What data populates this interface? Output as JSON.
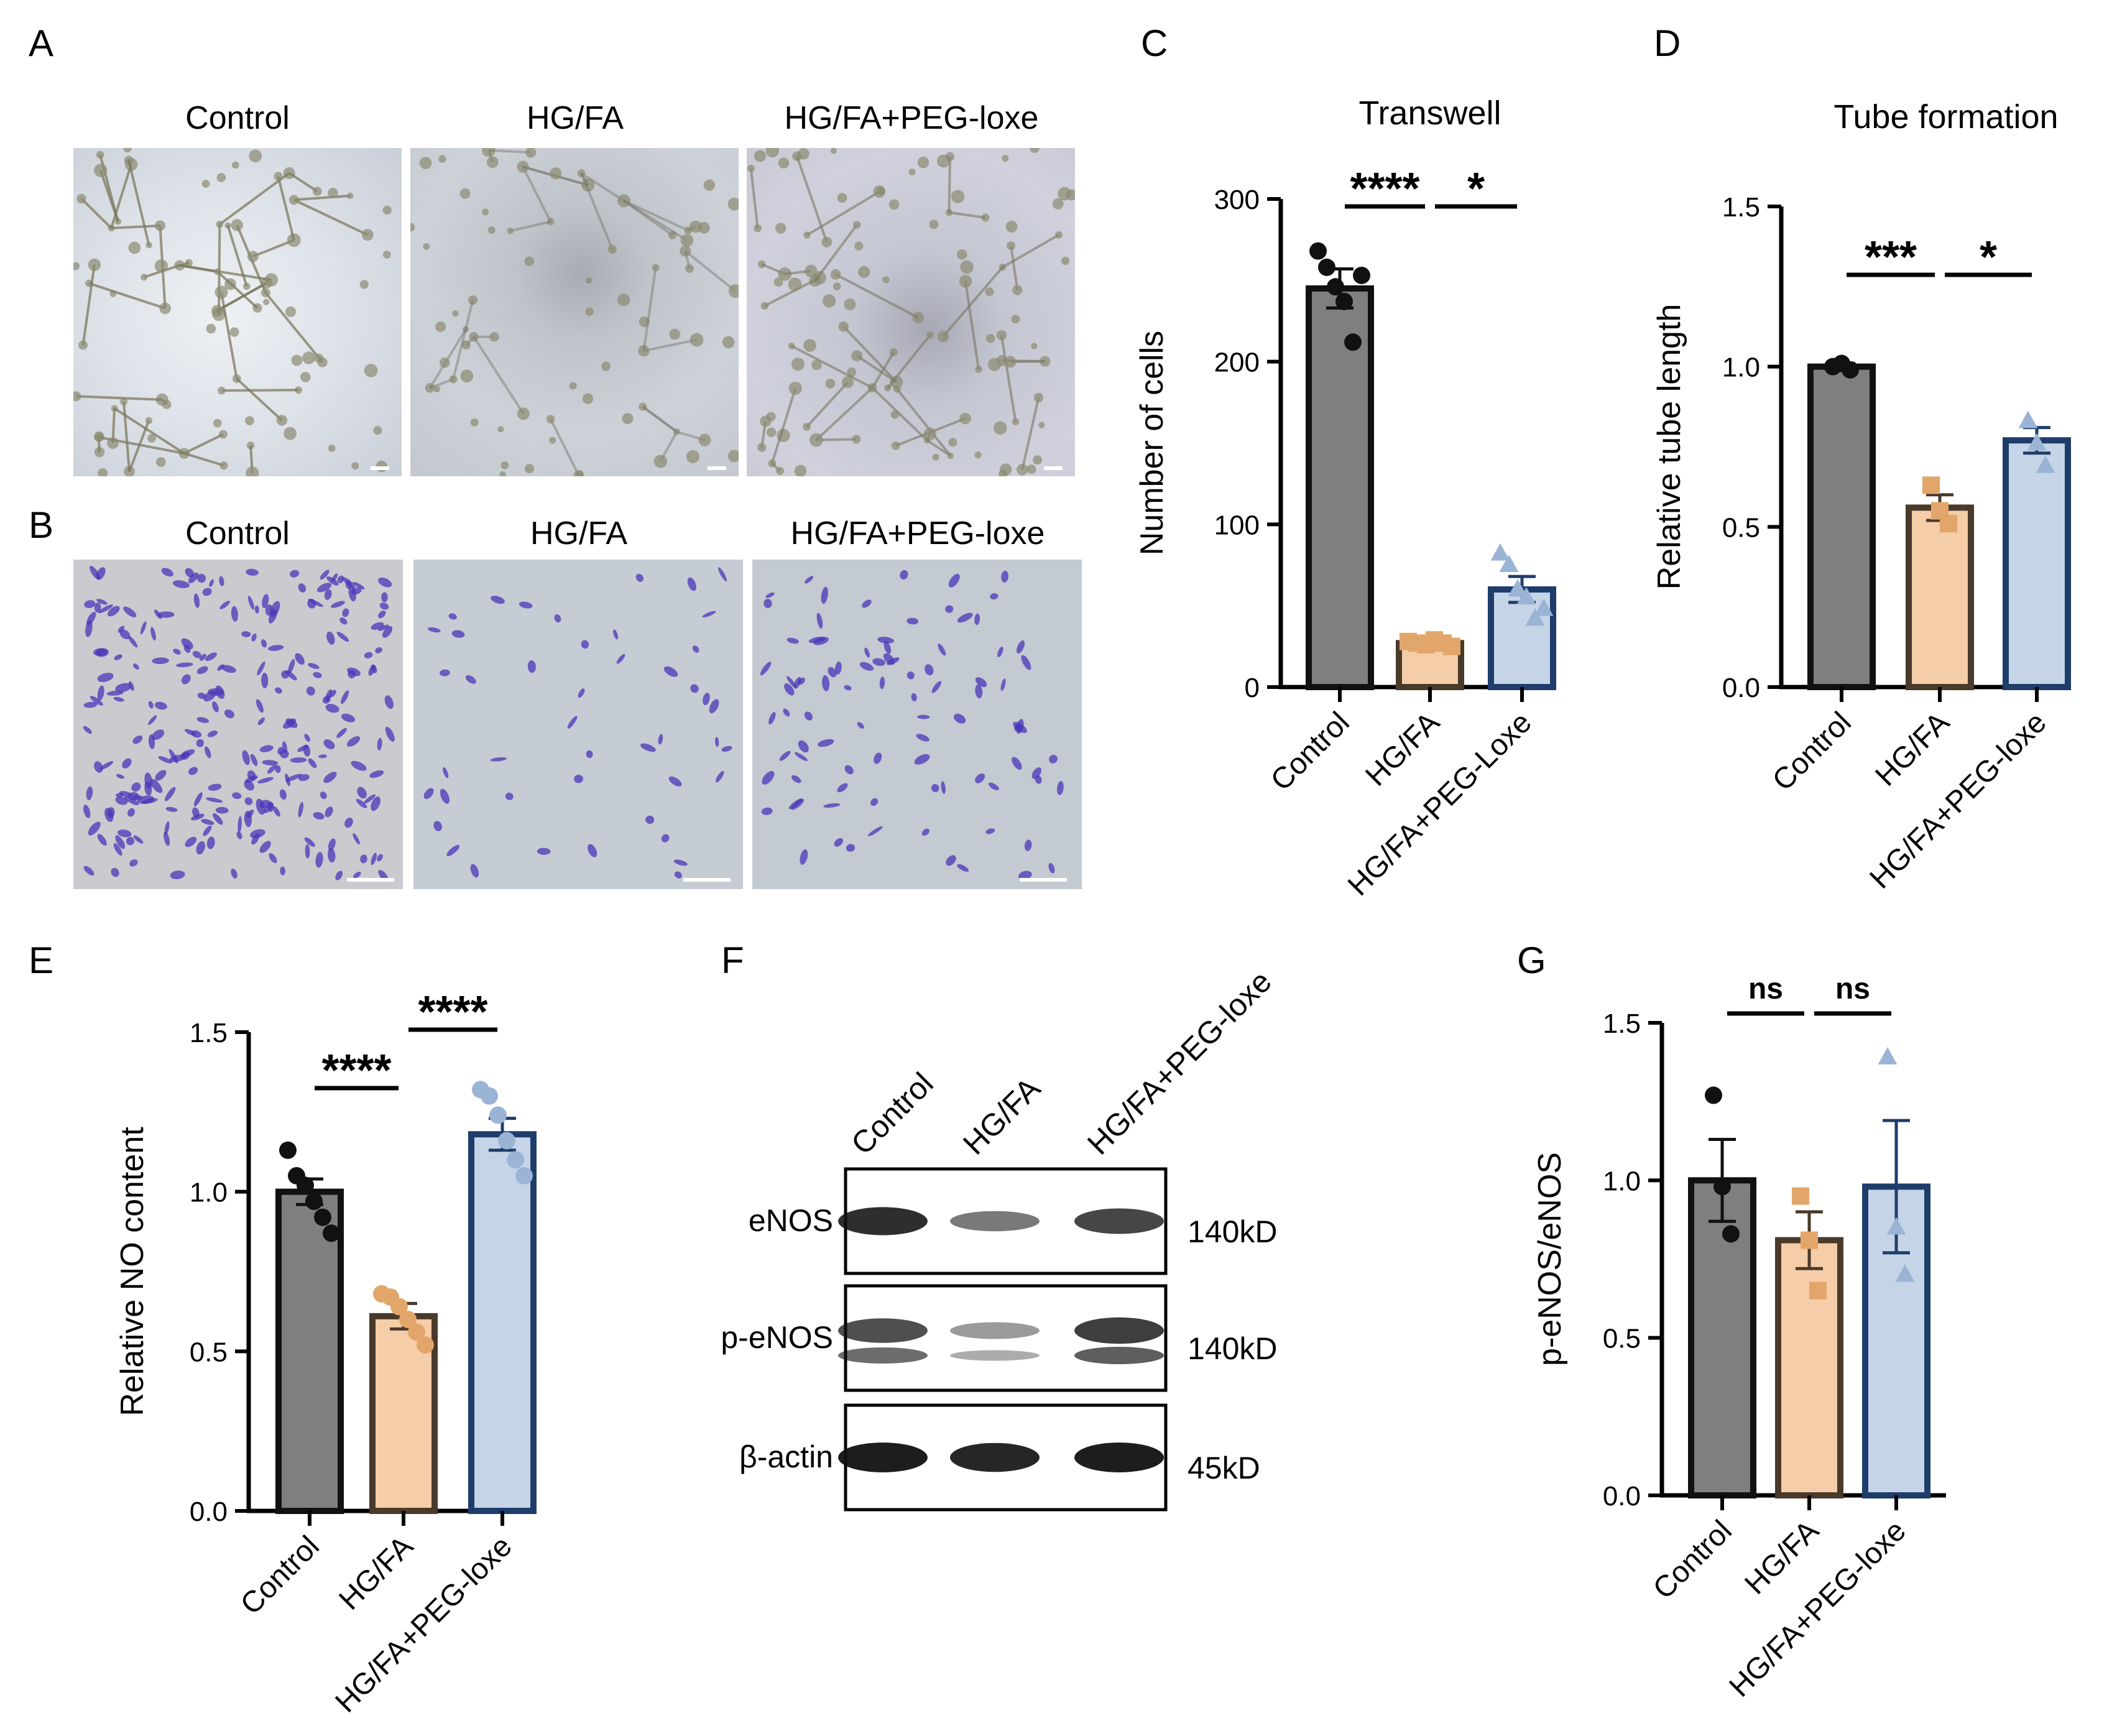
{
  "panels": {
    "A": {
      "letter": "A",
      "titles": [
        "Control",
        "HG/FA",
        "HG/FA+PEG-loxe"
      ]
    },
    "B": {
      "letter": "B",
      "titles": [
        "Control",
        "HG/FA",
        "HG/FA+PEG-loxe"
      ]
    },
    "C": {
      "letter": "C"
    },
    "D": {
      "letter": "D"
    },
    "E": {
      "letter": "E"
    },
    "F": {
      "letter": "F"
    },
    "G": {
      "letter": "G"
    }
  },
  "colors": {
    "control": "#7f7f7f",
    "hgfa": "#f5cda8",
    "peg": "#c5d5e7",
    "control_edge": "#111111",
    "hgfa_edge": "#4a3a2a",
    "peg_edge": "#1f3d6b",
    "hgfa_point": "#e3a66a",
    "peg_point": "#9bb4d6",
    "tube_bg": "#c9ccd4",
    "stain": "#4a35b8"
  },
  "western_blot": {
    "lanes": [
      "Control",
      "HG/FA",
      "HG/FA+PEG-loxe"
    ],
    "bands": [
      {
        "name": "eNOS",
        "size": "140kD",
        "intensity": [
          0.9,
          0.45,
          0.75
        ]
      },
      {
        "name": "p-eNOS",
        "size": "140kD",
        "intensity": [
          0.7,
          0.25,
          0.8
        ]
      },
      {
        "name": "β-actin",
        "size": "45kD",
        "intensity": [
          1.0,
          0.95,
          1.0
        ]
      }
    ]
  },
  "chart_data": [
    {
      "id": "C",
      "type": "bar",
      "title": "Transwell",
      "categories": [
        "Control",
        "HG/FA",
        "HG/FA+PEG-Loxe"
      ],
      "ylabel": "Number of cells",
      "xlabel": "",
      "ylim": [
        0,
        300
      ],
      "yticks": [
        "0",
        "100",
        "200",
        "300"
      ],
      "values": [
        245,
        27,
        60
      ],
      "errors": [
        12,
        2,
        8
      ],
      "points": [
        [
          268,
          258,
          246,
          237,
          212,
          253
        ],
        [
          28,
          27,
          26,
          29,
          27,
          25
        ],
        [
          82,
          75,
          60,
          55,
          42,
          48
        ]
      ],
      "markers": [
        "circle",
        "square",
        "triangle"
      ],
      "significance": [
        {
          "from": 0,
          "to": 1,
          "label": "****"
        },
        {
          "from": 1,
          "to": 2,
          "label": "*"
        }
      ]
    },
    {
      "id": "D",
      "type": "bar",
      "title": "Tube formation",
      "categories": [
        "Control",
        "HG/FA",
        "HG/FA+PEG-loxe"
      ],
      "ylabel": "Relative tube length",
      "xlabel": "",
      "ylim": [
        0,
        1.5
      ],
      "yticks": [
        "0.0",
        "0.5",
        "1.0",
        "1.5"
      ],
      "values": [
        1.0,
        0.56,
        0.77
      ],
      "errors": [
        0.01,
        0.04,
        0.04
      ],
      "points": [
        [
          1.0,
          1.01,
          0.99
        ],
        [
          0.63,
          0.55,
          0.51
        ],
        [
          0.83,
          0.76,
          0.69
        ]
      ],
      "markers": [
        "circle",
        "square",
        "triangle"
      ],
      "significance": [
        {
          "from": 0,
          "to": 1,
          "label": "***"
        },
        {
          "from": 1,
          "to": 2,
          "label": "*"
        }
      ]
    },
    {
      "id": "E",
      "type": "bar",
      "title": "",
      "categories": [
        "Control",
        "HG/FA",
        "HG/FA+PEG-loxe"
      ],
      "ylabel": "Relative NO content",
      "xlabel": "",
      "ylim": [
        0,
        1.5
      ],
      "yticks": [
        "0.0",
        "0.5",
        "1.0",
        "1.5"
      ],
      "values": [
        1.0,
        0.61,
        1.18
      ],
      "errors": [
        0.04,
        0.04,
        0.05
      ],
      "points": [
        [
          1.13,
          1.05,
          1.02,
          0.97,
          0.92,
          0.87
        ],
        [
          0.68,
          0.67,
          0.64,
          0.6,
          0.56,
          0.52
        ],
        [
          1.32,
          1.3,
          1.24,
          1.16,
          1.1,
          1.05
        ]
      ],
      "markers": [
        "circle",
        "circle",
        "circle"
      ],
      "significance": [
        {
          "from": 0,
          "to": 1,
          "label": "****"
        },
        {
          "from": 1,
          "to": 2,
          "label": "****"
        }
      ]
    },
    {
      "id": "G",
      "type": "bar",
      "title": "",
      "categories": [
        "Control",
        "HG/FA",
        "HG/FA+PEG-loxe"
      ],
      "ylabel": "p-eNOS/eNOS",
      "xlabel": "",
      "ylim": [
        0,
        1.5
      ],
      "yticks": [
        "0.0",
        "0.5",
        "1.0",
        "1.5"
      ],
      "values": [
        1.0,
        0.81,
        0.98
      ],
      "errors": [
        0.13,
        0.09,
        0.21
      ],
      "points": [
        [
          1.27,
          0.98,
          0.83
        ],
        [
          0.95,
          0.81,
          0.65
        ],
        [
          1.39,
          0.85,
          0.7
        ]
      ],
      "markers": [
        "circle",
        "square",
        "triangle"
      ],
      "significance": [
        {
          "from": 0,
          "to": 1,
          "label": "ns"
        },
        {
          "from": 1,
          "to": 2,
          "label": "ns"
        }
      ]
    }
  ]
}
